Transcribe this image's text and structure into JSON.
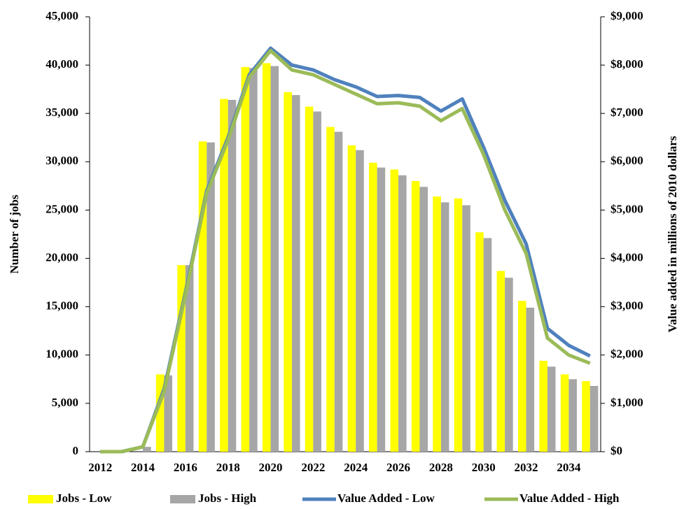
{
  "chart_data": {
    "type": "bar",
    "y_label": "Number of jobs",
    "y2_label": "Value added in millions of 2010 dollars",
    "categories": [
      "2012",
      null,
      "2014",
      null,
      "2016",
      null,
      "2018",
      null,
      "2020",
      null,
      "2022",
      null,
      "2024",
      null,
      "2026",
      null,
      "2028",
      null,
      "2030",
      null,
      "2032",
      null,
      "2034",
      null
    ],
    "ylim": [
      0,
      45000
    ],
    "yticks": [
      0,
      {
        "value": 5000,
        "label": "5,000"
      },
      {
        "value": 10000,
        "label": "10,000"
      },
      {
        "value": 15000,
        "label": "15,000"
      },
      {
        "value": 20000,
        "label": "20,000"
      },
      {
        "value": 25000,
        "label": "25,000"
      },
      {
        "value": 30000,
        "label": "30,000"
      },
      {
        "value": 35000,
        "label": "35,000"
      },
      {
        "value": 40000,
        "label": "40,000"
      },
      {
        "value": 45000,
        "label": "45,000"
      }
    ],
    "y2lim": [
      0,
      9000
    ],
    "y2ticks": [
      {
        "value": 0,
        "label": "$0"
      },
      {
        "value": 1000,
        "label": "$1,000"
      },
      {
        "value": 2000,
        "label": "$2,000"
      },
      {
        "value": 3000,
        "label": "$3,000"
      },
      {
        "value": 4000,
        "label": "$4,000"
      },
      {
        "value": 5000,
        "label": "$5,000"
      },
      {
        "value": 6000,
        "label": "$6,000"
      },
      {
        "value": 7000,
        "label": "$7,000"
      },
      {
        "value": 8000,
        "label": "$8,000"
      },
      {
        "value": 9000,
        "label": "$9,000"
      }
    ],
    "grid": false,
    "legend": "bottom",
    "series": [
      {
        "name": "Jobs - Low",
        "type": "bar",
        "color": "#ffff00",
        "values": [
          0,
          0,
          0,
          8000,
          19300,
          32100,
          36500,
          39800,
          40200,
          37200,
          35700,
          33600,
          31700,
          29900,
          29200,
          28000,
          26400,
          26200,
          22700,
          18700,
          15600,
          9400,
          8000,
          7300
        ]
      },
      {
        "name": "Jobs - High",
        "type": "bar",
        "color": "#a6a6a6",
        "values": [
          0,
          0,
          500,
          7900,
          19300,
          32000,
          36400,
          39700,
          39900,
          36900,
          35200,
          33100,
          31200,
          29400,
          28600,
          27400,
          25800,
          25500,
          22100,
          18000,
          14900,
          8800,
          7500,
          6800
        ]
      },
      {
        "name": "Value Added - Low",
        "type": "line",
        "axis": "y2",
        "color": "#4f81bd",
        "values": [
          0,
          0,
          100,
          1300,
          3300,
          5400,
          6500,
          7800,
          8350,
          8000,
          7900,
          7700,
          7550,
          7350,
          7370,
          7330,
          7050,
          7300,
          6300,
          5200,
          4300,
          2550,
          2200,
          1980
        ]
      },
      {
        "name": "Value Added - High",
        "type": "line",
        "axis": "y2",
        "color": "#9bbb59",
        "values": [
          0,
          0,
          100,
          1250,
          3250,
          5350,
          6450,
          7750,
          8300,
          7900,
          7800,
          7600,
          7400,
          7200,
          7220,
          7150,
          6850,
          7100,
          6150,
          5000,
          4100,
          2350,
          2000,
          1830
        ]
      }
    ]
  }
}
